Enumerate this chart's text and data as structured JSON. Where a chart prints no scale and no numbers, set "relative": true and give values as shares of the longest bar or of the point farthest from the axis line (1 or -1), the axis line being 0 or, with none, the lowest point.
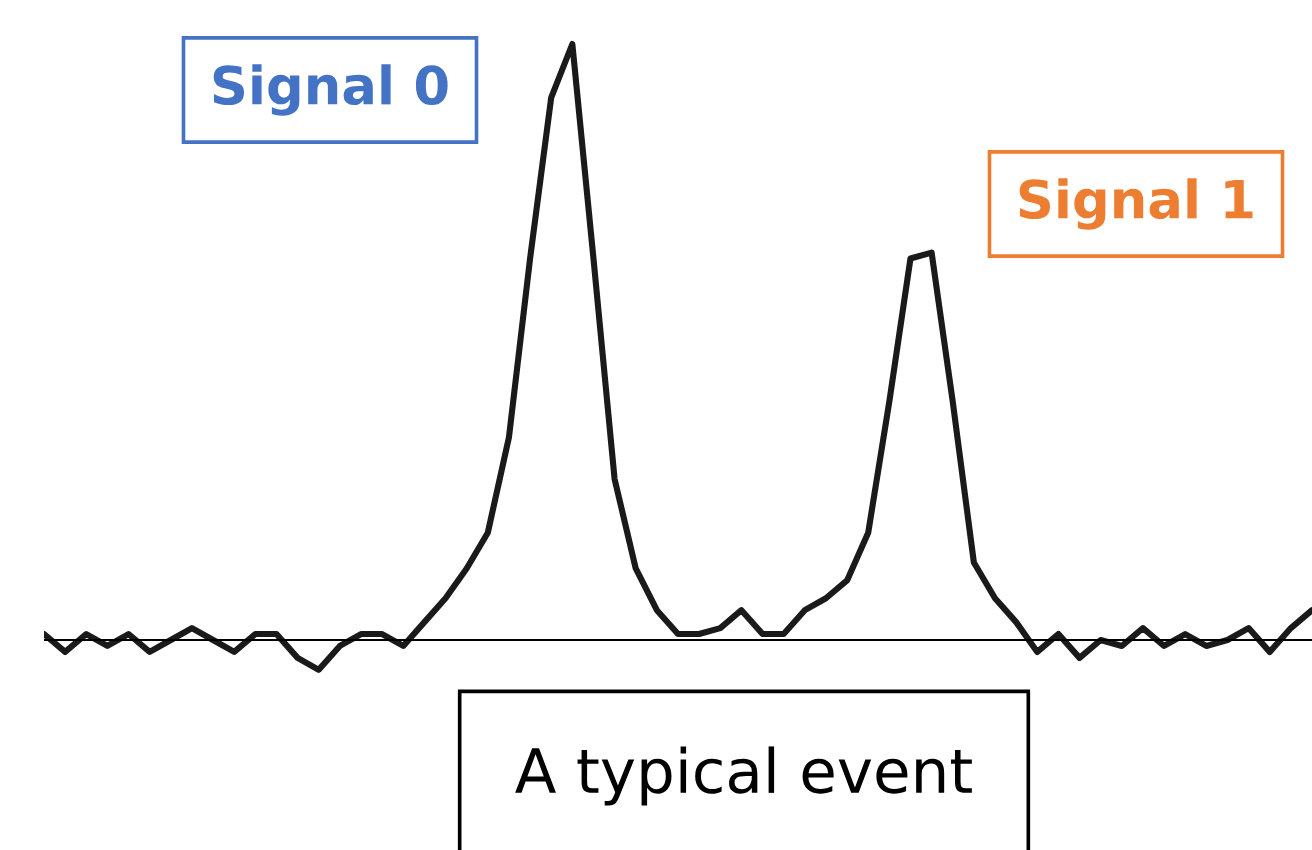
{
  "chart_data": {
    "type": "line",
    "relative": true,
    "categories": [
      null,
      null,
      null,
      null,
      null,
      null,
      null,
      null,
      null,
      null,
      null,
      null,
      null,
      null,
      null,
      null,
      null,
      null,
      null,
      null,
      null,
      null,
      null,
      null,
      null,
      null,
      null,
      null,
      null,
      null,
      null,
      null,
      null,
      null,
      null,
      null,
      null,
      null,
      null,
      null,
      null,
      null,
      null,
      null,
      null,
      null,
      null,
      null,
      null,
      null,
      null,
      null,
      null,
      null,
      null,
      null,
      null,
      null,
      null,
      null,
      null
    ],
    "series": [
      {
        "color": "#1a1a1a",
        "values": [
          0.01,
          -0.02,
          0.01,
          -0.01,
          0.01,
          -0.02,
          0,
          0.02,
          0,
          -0.02,
          0.01,
          0.01,
          -0.03,
          -0.05,
          -0.01,
          0.01,
          0.01,
          -0.01,
          0.03,
          0.07,
          0.12,
          0.18,
          0.34,
          0.64,
          0.91,
          1.0,
          0.64,
          0.27,
          0.12,
          0.05,
          0.01,
          0.01,
          0.02,
          0.05,
          0.01,
          0.01,
          0.05,
          0.07,
          0.1,
          0.18,
          0.4,
          0.64,
          0.65,
          0.4,
          0.13,
          0.07,
          0.03,
          -0.02,
          0.01,
          -0.03,
          0,
          -0.01,
          0.02,
          -0.01,
          0.01,
          -0.01,
          0,
          0.02,
          -0.02,
          0.02,
          0.05
        ]
      }
    ],
    "annotations": [
      "Signal 0",
      "Signal 1",
      "A typical event"
    ],
    "marker": "none",
    "line_style": "solid"
  }
}
